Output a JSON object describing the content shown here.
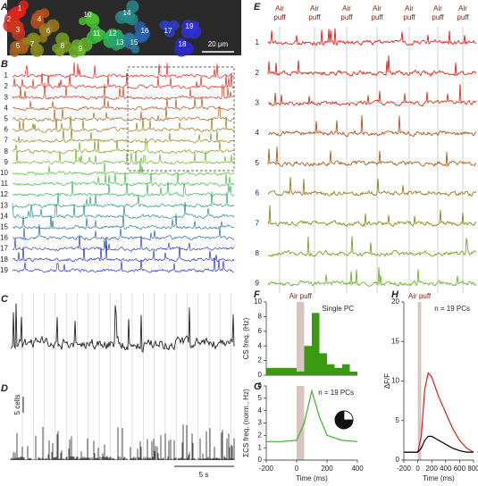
{
  "figure": {
    "panel_labels": [
      "A",
      "B",
      "C",
      "D",
      "E",
      "F",
      "G",
      "H"
    ],
    "cells": [
      1,
      2,
      3,
      4,
      5,
      6,
      7,
      8,
      9,
      10,
      11,
      12,
      13,
      14,
      15,
      16,
      17,
      18,
      19
    ],
    "row_colors": [
      "#e8201c",
      "#d9281e",
      "#c9381f",
      "#b8501f",
      "#a8601f",
      "#9a7a1e",
      "#8a8a1e",
      "#7aa020",
      "#6ab52a",
      "#4cc030",
      "#3cbf40",
      "#30b858",
      "#2aa070",
      "#288a88",
      "#2a7a9a",
      "#2a60b0",
      "#2a40c0",
      "#2a2ac8",
      "#3030d0"
    ],
    "image_scale": "20 μm",
    "air_puff": "Air puff",
    "d_scale_y": "5 cells",
    "d_scale_x": "5 s"
  },
  "chart_data": [
    {
      "type": "histogram",
      "panel": "F",
      "title": "Single PC",
      "annotation": "Air puff",
      "ylabel": "CS freq. (Hz)",
      "bins": [
        -200,
        -150,
        -100,
        -50,
        0,
        50,
        100,
        150,
        200,
        250,
        300,
        350,
        400
      ],
      "values": [
        1,
        1,
        1,
        1,
        0.5,
        4,
        8.5,
        3,
        1.5,
        1,
        1.5,
        0.5
      ],
      "color": "#3a9a10",
      "xlim": [
        -200,
        400
      ],
      "ylim": [
        0,
        10
      ],
      "yticks": [
        0,
        2,
        4,
        6,
        8,
        10
      ]
    },
    {
      "type": "line",
      "panel": "G",
      "title": "n = 19 PCs",
      "ylabel": "ΣCS freq. (norm., Hz)",
      "xlabel": "Time (ms)",
      "x": [
        -200,
        -100,
        0,
        50,
        100,
        150,
        200,
        300,
        400
      ],
      "values": [
        1.5,
        1.5,
        1.6,
        3,
        5.6,
        3.5,
        2,
        1.6,
        1.5
      ],
      "color": "#40b030",
      "xlim": [
        -200,
        400
      ],
      "xticks": [
        -200,
        0,
        200,
        400
      ],
      "ylim": [
        0,
        6
      ],
      "yticks": [
        0,
        1,
        2,
        3,
        4,
        5,
        6
      ]
    },
    {
      "type": "line",
      "panel": "H",
      "title": "n = 19 PCs",
      "annotation": "Air puff",
      "ylabel": "ΔF/F",
      "xlabel": "Time (ms)",
      "x": [
        -200,
        -100,
        0,
        50,
        100,
        150,
        200,
        300,
        400,
        500,
        600,
        700,
        800
      ],
      "series": [
        {
          "color": "#d42020",
          "values": [
            1,
            1,
            1,
            3,
            9,
            11,
            10.5,
            8,
            6,
            4,
            2.5,
            1.5,
            1
          ]
        },
        {
          "color": "#000000",
          "values": [
            1,
            1,
            1,
            1.5,
            2.5,
            3,
            3,
            2.5,
            2,
            1.5,
            1.2,
            1,
            1
          ]
        }
      ],
      "xlim": [
        -200,
        800
      ],
      "xticks": [
        -200,
        0,
        200,
        400,
        600,
        800
      ],
      "ylim": [
        0,
        20
      ],
      "yticks": [
        0,
        5,
        10,
        15,
        20
      ]
    }
  ]
}
